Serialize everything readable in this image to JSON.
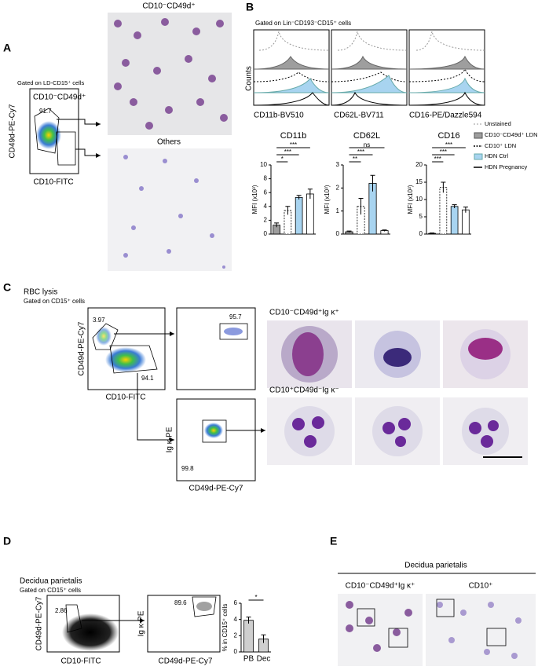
{
  "panels": {
    "A": {
      "letter": "A",
      "gate": "Gated on LD-CD15⁺ cells",
      "gate_label": "CD10⁻CD49d⁺",
      "pct": "91.7",
      "y_axis": "CD49d-PE-Cy7",
      "x_axis": "CD10-FITC",
      "image1_title": "CD10⁻CD49d⁺",
      "image2_title": "Others"
    },
    "B": {
      "letter": "B",
      "gate": "Gated on Lin⁻CD193⁻CD15⁺ cells",
      "counts": "Counts",
      "hist_x": [
        "CD11b-BV510",
        "CD62L-BV711",
        "CD16-PE/Dazzle594"
      ],
      "legend": [
        "Unstained",
        "CD10⁻CD49d⁺ LDN",
        "CD10⁺ LDN",
        "HDN Ctrl",
        "HDN Pregnancy"
      ],
      "bar_fills": [
        "#9e9e9e",
        "#ffffff",
        "#a8d4f0",
        "#ffffff"
      ],
      "charts": [
        {
          "title": "CD11b",
          "y_label": "MFI (x10³)",
          "ylim": [
            0,
            10
          ],
          "yticks": [
            0,
            2,
            4,
            6,
            8,
            10
          ],
          "values": [
            1.3,
            3.4,
            5.3,
            5.8
          ],
          "errors": [
            0.3,
            0.6,
            0.3,
            0.7
          ],
          "significance": [
            "***",
            "***",
            "*"
          ]
        },
        {
          "title": "CD62L",
          "y_label": "MFI (x10³)",
          "ylim": [
            0,
            3
          ],
          "yticks": [
            0,
            1,
            2,
            3
          ],
          "values": [
            0.1,
            1.2,
            2.2,
            0.15
          ],
          "errors": [
            0.03,
            0.35,
            0.35,
            0.03
          ],
          "significance": [
            "ns",
            "***",
            "**"
          ]
        },
        {
          "title": "CD16",
          "y_label": "MFI (x10³)",
          "ylim": [
            0,
            20
          ],
          "yticks": [
            0,
            5,
            10,
            15,
            20
          ],
          "values": [
            0.2,
            13.5,
            8,
            7
          ],
          "errors": [
            0.1,
            1.5,
            0.5,
            0.8
          ],
          "significance": [
            "***",
            "***",
            "***"
          ]
        }
      ]
    },
    "C": {
      "letter": "C",
      "title": "RBC lysis",
      "gate": "Gated on CD15⁺ cells",
      "pct1": "3.97",
      "pct2": "94.1",
      "pct3": "95.7",
      "pct4": "99.8",
      "y_axis1": "CD49d-PE-Cy7",
      "x_axis1": "CD10-FITC",
      "y_axis3": "Ig κ-PE",
      "x_axis3": "CD49d-PE-Cy7",
      "image1_title": "CD10⁻CD49d⁺Ig κ⁺",
      "image2_title": "CD10⁺CD49d⁻Ig κ⁻"
    },
    "D": {
      "letter": "D",
      "title": "Decidua parietalis",
      "gate": "Gated on CD15⁺ cells",
      "pct1": "2.86",
      "pct2": "89.6",
      "y_axis1": "CD49d-PE-Cy7",
      "x_axis1": "CD10-FITC",
      "y_axis2": "Ig κ-PE",
      "x_axis2": "CD49d-PE-Cy7",
      "chart": {
        "y_label": "% in CD15⁺ cells",
        "categories": [
          "PB",
          "Dec"
        ],
        "ylim": [
          0,
          6
        ],
        "yticks": [
          0,
          2,
          4,
          6
        ],
        "values": [
          3.9,
          1.6
        ],
        "errors": [
          0.4,
          0.5
        ],
        "significance": [
          "*"
        ],
        "fills": [
          "#cfcfcf",
          "#cfcfcf"
        ]
      }
    },
    "E": {
      "letter": "E",
      "title": "Decidua parietalis",
      "col1": "CD10⁻CD49d⁺Ig κ⁺",
      "col2": "CD10⁺"
    }
  }
}
